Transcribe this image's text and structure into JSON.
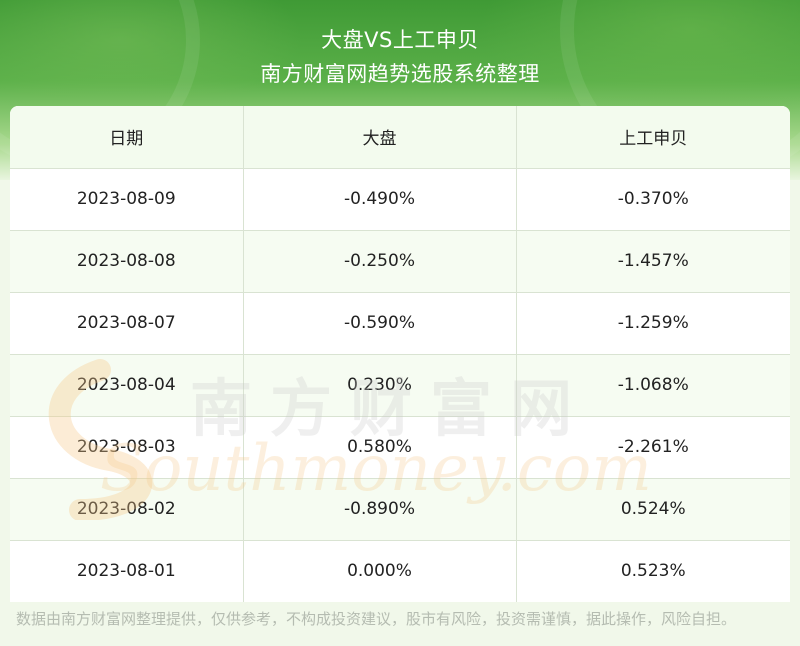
{
  "header": {
    "title": "大盘VS上工申贝",
    "subtitle": "南方财富网趋势选股系统整理"
  },
  "table": {
    "columns": [
      "日期",
      "大盘",
      "上工申贝"
    ],
    "rows": [
      [
        "2023-08-09",
        "-0.490%",
        "-0.370%"
      ],
      [
        "2023-08-08",
        "-0.250%",
        "-1.457%"
      ],
      [
        "2023-08-07",
        "-0.590%",
        "-1.259%"
      ],
      [
        "2023-08-04",
        "0.230%",
        "-1.068%"
      ],
      [
        "2023-08-03",
        "0.580%",
        "-2.261%"
      ],
      [
        "2023-08-02",
        "-0.890%",
        "0.524%"
      ],
      [
        "2023-08-01",
        "0.000%",
        "0.523%"
      ]
    ]
  },
  "watermark": {
    "cn": "南方财富网",
    "en": "Southmoney.com"
  },
  "footer": {
    "disclaimer": "数据由南方财富网整理提供，仅供参考，不构成投资建议，股市有风险，投资需谨慎，据此操作，风险自担。"
  },
  "colors": {
    "header_green": "#4fa63f",
    "row_alt": "#f6fcf2",
    "watermark_gray": "#c8c8c8",
    "watermark_orange": "#f5c98a"
  }
}
